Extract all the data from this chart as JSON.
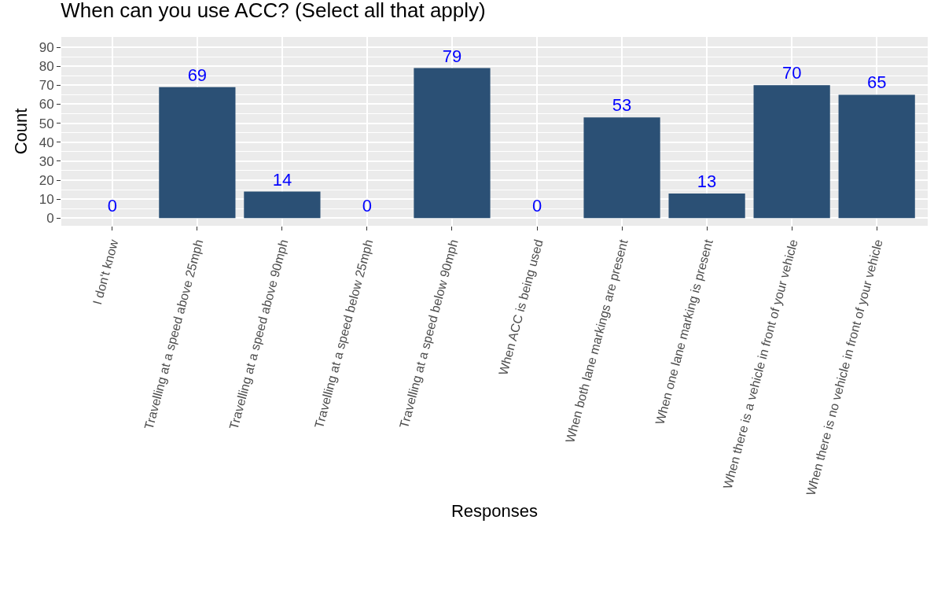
{
  "chart_data": {
    "type": "bar",
    "title": "When can you use ACC? (Select all that apply)",
    "xlabel": "Responses",
    "ylabel": "Count",
    "categories": [
      "I don't know",
      "Travelling at a speed above 25mph",
      "Travelling at a speed above 90mph",
      "Travelling at a speed below 25mph",
      "Travelling at a speed below 90mph",
      "When ACC is being used",
      "When both lane markings are present",
      "When one lane marking is present",
      "When there is a vehicle in front of your vehicle",
      "When there is no vehicle in front of your vehicle"
    ],
    "values": [
      0,
      69,
      14,
      0,
      79,
      0,
      53,
      13,
      70,
      65
    ],
    "color": "#2b5075",
    "data_labels": true,
    "ylim": [
      -4,
      95.4
    ],
    "yticks": [
      0,
      10,
      20,
      30,
      40,
      50,
      60,
      70,
      80,
      90
    ],
    "grid": true,
    "legend": false
  }
}
